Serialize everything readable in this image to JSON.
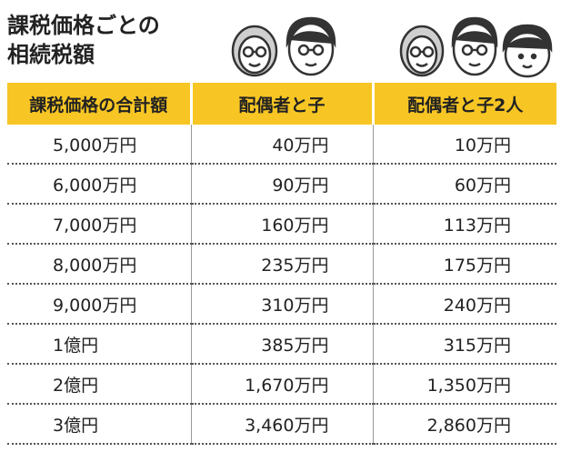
{
  "title": {
    "line1": "課税価格ごとの",
    "line2": "相続税額"
  },
  "icons": {
    "group_a": [
      "grandmother-face-icon",
      "man-glasses-face-icon"
    ],
    "group_b": [
      "grandmother-face-icon",
      "man-glasses-face-icon",
      "child-face-icon"
    ]
  },
  "colors": {
    "header_bg": "#f7c624",
    "text": "#222222"
  },
  "table": {
    "headers": [
      "課税価格の合計額",
      "配偶者と子",
      "配偶者と子2人"
    ],
    "rows": [
      [
        "5,000万円",
        "40万円",
        "10万円"
      ],
      [
        "6,000万円",
        "90万円",
        "60万円"
      ],
      [
        "7,000万円",
        "160万円",
        "113万円"
      ],
      [
        "8,000万円",
        "235万円",
        "175万円"
      ],
      [
        "9,000万円",
        "310万円",
        "240万円"
      ],
      [
        "1億円",
        "385万円",
        "315万円"
      ],
      [
        "2億円",
        "1,670万円",
        "1,350万円"
      ],
      [
        "3億円",
        "3,460万円",
        "2,860万円"
      ]
    ]
  }
}
